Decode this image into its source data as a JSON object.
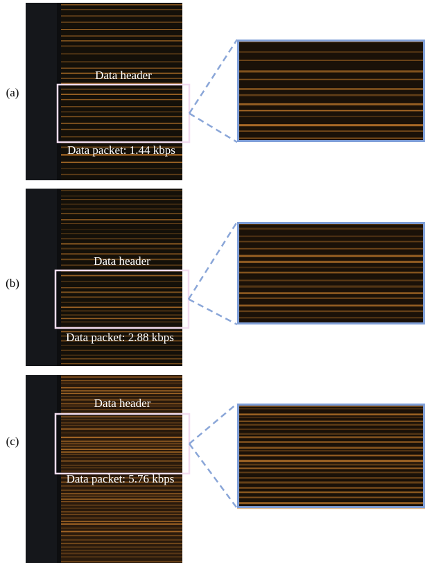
{
  "panels": [
    {
      "label": "(a)",
      "header": "Data header",
      "packet": "Data packet: 1.44 kbps"
    },
    {
      "label": "(b)",
      "header": "Data header",
      "packet": "Data packet: 2.88 kbps"
    },
    {
      "label": "(c)",
      "header": "Data header",
      "packet": "Data packet: 5.76 kbps"
    }
  ]
}
